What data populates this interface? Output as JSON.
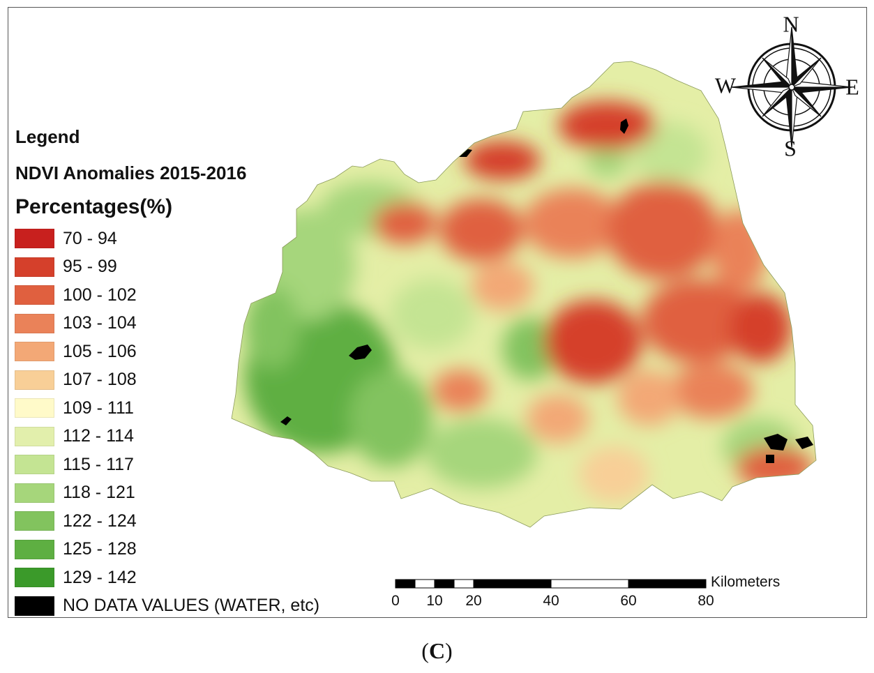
{
  "legend": {
    "heading": "Legend",
    "subtitle": "NDVI Anomalies 2015-2016",
    "units": "Percentages(%)",
    "classes": [
      {
        "label": "70 - 94",
        "color": "#c8201e"
      },
      {
        "label": "95 - 99",
        "color": "#d5402b"
      },
      {
        "label": "100 - 102",
        "color": "#e0603f"
      },
      {
        "label": "103 - 104",
        "color": "#ea8259"
      },
      {
        "label": "105 - 106",
        "color": "#f3a876"
      },
      {
        "label": "107 - 108",
        "color": "#f8cf97"
      },
      {
        "label": "109 - 111",
        "color": "#fffac9"
      },
      {
        "label": "112 - 114",
        "color": "#e2efac"
      },
      {
        "label": "115 - 117",
        "color": "#c4e493"
      },
      {
        "label": "118 - 121",
        "color": "#a6d67b"
      },
      {
        "label": "122 - 124",
        "color": "#82c35e"
      },
      {
        "label": "125 - 128",
        "color": "#5eaf42"
      },
      {
        "label": "129 - 142",
        "color": "#3b9a2a"
      },
      {
        "label": "NO DATA VALUES (WATER, etc)",
        "color": "#000000"
      }
    ]
  },
  "compass": {
    "north": "N",
    "south": "S",
    "east": "E",
    "west": "W"
  },
  "scale_bar": {
    "unit": "Kilometers",
    "ticks": [
      "0",
      "10",
      "20",
      "40",
      "60",
      "80"
    ]
  },
  "panel_label": {
    "open": "(",
    "letter": "C",
    "close": ")"
  }
}
